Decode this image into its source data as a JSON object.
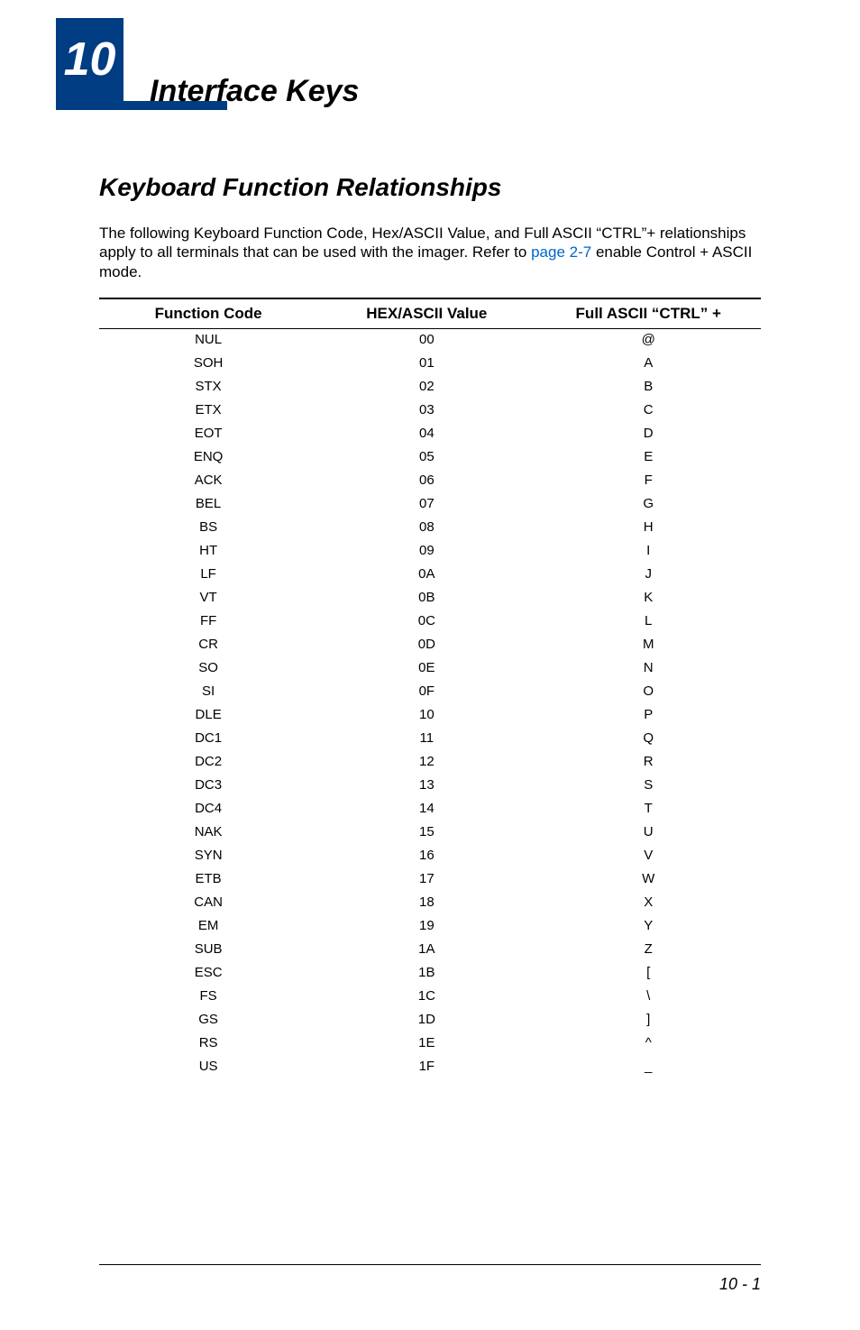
{
  "chapter": {
    "number": "10",
    "title": "Interface Keys",
    "box_color": "#003d82",
    "number_color": "#ffffff"
  },
  "section": {
    "title": "Keyboard Function Relationships",
    "intro_part1": "The following Keyboard Function Code, Hex/ASCII Value, and Full ASCII “CTRL”+  relationships apply to all terminals that can be used with the imager.  Refer to ",
    "intro_link": "page 2-7",
    "intro_part2": " enable Control + ASCII mode.",
    "link_color": "#0066cc"
  },
  "table": {
    "columns": [
      "Function Code",
      "HEX/ASCII Value",
      "Full ASCII “CTRL” +"
    ],
    "rows": [
      [
        "NUL",
        "00",
        "@"
      ],
      [
        "SOH",
        "01",
        "A"
      ],
      [
        "STX",
        "02",
        "B"
      ],
      [
        "ETX",
        "03",
        "C"
      ],
      [
        "EOT",
        "04",
        "D"
      ],
      [
        "ENQ",
        "05",
        "E"
      ],
      [
        "ACK",
        "06",
        "F"
      ],
      [
        "BEL",
        "07",
        "G"
      ],
      [
        "BS",
        "08",
        "H"
      ],
      [
        "HT",
        "09",
        "I"
      ],
      [
        "LF",
        "0A",
        "J"
      ],
      [
        "VT",
        "0B",
        "K"
      ],
      [
        "FF",
        "0C",
        "L"
      ],
      [
        "CR",
        "0D",
        "M"
      ],
      [
        "SO",
        "0E",
        "N"
      ],
      [
        "SI",
        "0F",
        "O"
      ],
      [
        "DLE",
        "10",
        "P"
      ],
      [
        "DC1",
        "11",
        "Q"
      ],
      [
        "DC2",
        "12",
        "R"
      ],
      [
        "DC3",
        "13",
        "S"
      ],
      [
        "DC4",
        "14",
        "T"
      ],
      [
        "NAK",
        "15",
        "U"
      ],
      [
        "SYN",
        "16",
        "V"
      ],
      [
        "ETB",
        "17",
        "W"
      ],
      [
        "CAN",
        "18",
        "X"
      ],
      [
        "EM",
        "19",
        "Y"
      ],
      [
        "SUB",
        "1A",
        "Z"
      ],
      [
        "ESC",
        "1B",
        "["
      ],
      [
        "FS",
        "1C",
        "\\"
      ],
      [
        "GS",
        "1D",
        "]"
      ],
      [
        "RS",
        "1E",
        "^"
      ],
      [
        "US",
        "1F",
        "_"
      ]
    ],
    "col_widths": [
      "33%",
      "33%",
      "34%"
    ],
    "border_color": "#000000"
  },
  "footer": {
    "page": "10 - 1"
  }
}
